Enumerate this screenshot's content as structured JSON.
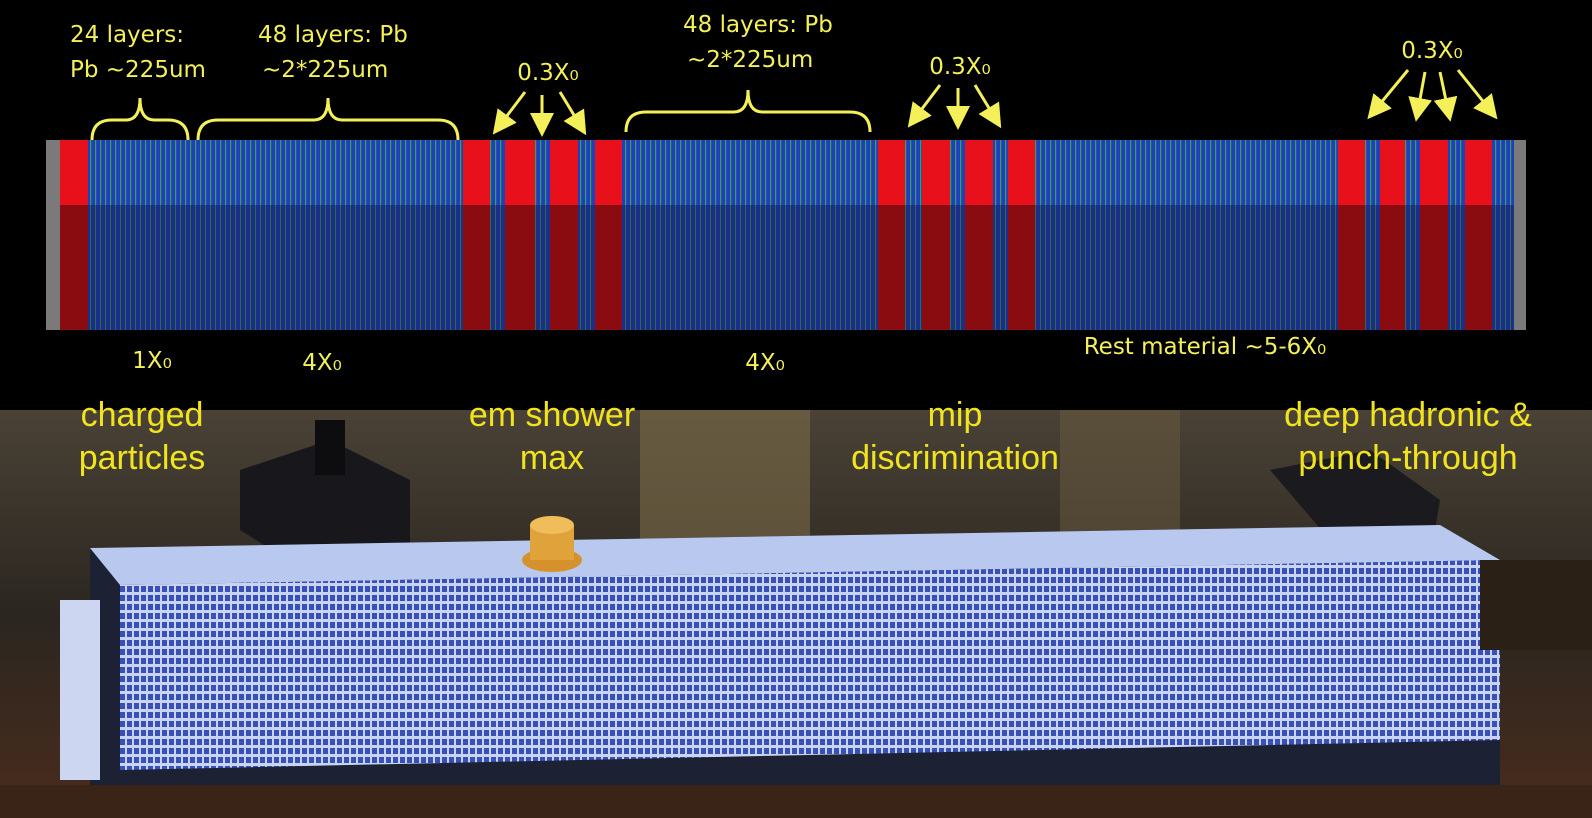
{
  "diagram": {
    "layer_labels": [
      {
        "lines": [
          "24 layers:",
          "Pb  ~225um"
        ]
      },
      {
        "lines": [
          "48 layers: Pb",
          "~2*225um"
        ]
      },
      {
        "lines": [
          "48 layers: Pb",
          "~2*225um"
        ]
      }
    ],
    "shower_labels": [
      "0.3X₀",
      "0.3X₀",
      "0.3X₀"
    ],
    "thickness_labels": [
      "1X₀",
      "4X₀",
      "4X₀",
      "Rest material ~5-6X₀"
    ],
    "roles": [
      {
        "lines": [
          "charged",
          "particles"
        ]
      },
      {
        "lines": [
          "em shower",
          "max"
        ]
      },
      {
        "lines": [
          "mip",
          "discrimination"
        ]
      },
      {
        "lines": [
          "deep hadronic &",
          "punch-through"
        ]
      }
    ]
  }
}
